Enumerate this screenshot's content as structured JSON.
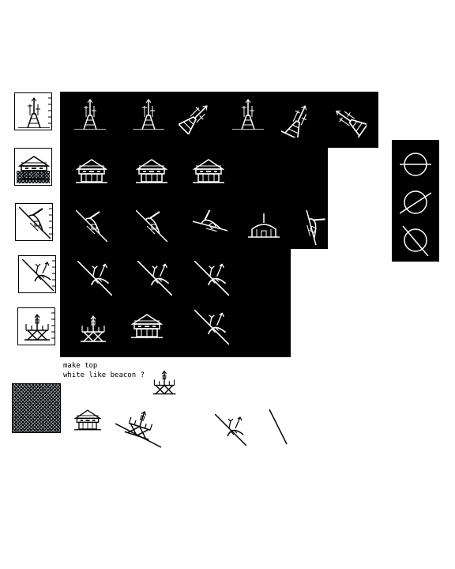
{
  "note": {
    "line1": "make top",
    "line2": "white like beacon ?"
  },
  "colors": {
    "panel": "#000000",
    "ink": "#ffffff",
    "page": "#ffffff"
  },
  "icons": {
    "tower": "antenna-tower-icon",
    "temple": "pagoda-building-icon",
    "dome_slope": "domed-bunker-on-slope-icon",
    "dome_flat": "domed-bunker-icon",
    "dish_slope": "satellite-dish-on-slope-icon",
    "beacon": "beacon-tower-icon",
    "slope": "slope-line-icon",
    "circle_h": "circle-level-line-icon",
    "circle_d": "circle-diagonal-line-icon"
  }
}
